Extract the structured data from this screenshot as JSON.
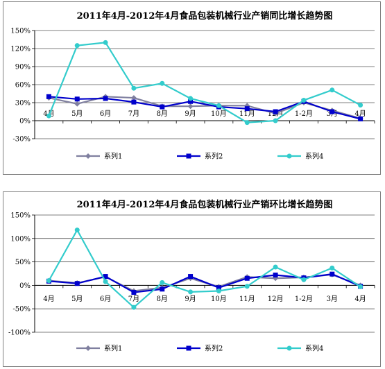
{
  "chart_data": [
    {
      "type": "line",
      "title": "2011年4月-2012年4月食品包装机械行业产销同比增长趋势图",
      "categories": [
        "4月",
        "5月",
        "6月",
        "7月",
        "8月",
        "9月",
        "10月",
        "11月",
        "12月",
        "1-2月",
        "3月",
        "4月"
      ],
      "yticks": [
        "150%",
        "120%",
        "90%",
        "60%",
        "30%",
        "0%",
        "-30%"
      ],
      "ylim": [
        -30,
        150
      ],
      "grid": true,
      "legend_position": "bottom",
      "series": [
        {
          "name": "系列1",
          "color": "#7f7f9f",
          "marker": "diamond",
          "values": [
            38,
            28,
            40,
            38,
            24,
            24,
            25,
            25,
            12,
            30,
            17,
            4
          ]
        },
        {
          "name": "系列2",
          "color": "#0000cc",
          "marker": "square",
          "values": [
            40,
            36,
            37,
            31,
            23,
            32,
            23,
            20,
            15,
            32,
            15,
            3
          ]
        },
        {
          "name": "系列4",
          "color": "#33cccc",
          "marker": "circle",
          "values": [
            8,
            125,
            130,
            54,
            62,
            37,
            25,
            -3,
            0,
            34,
            51,
            26
          ]
        }
      ]
    },
    {
      "type": "line",
      "title": "2011年4月-2012年4月食品包装机械行业产销环比增长趋势图",
      "categories": [
        "4月",
        "5月",
        "6月",
        "7月",
        "8月",
        "9月",
        "10月",
        "11月",
        "12月",
        "1-2月",
        "3月",
        "4月"
      ],
      "yticks": [
        "150%",
        "100%",
        "50%",
        "0%",
        "-50%",
        "-100%"
      ],
      "ylim": [
        -100,
        150
      ],
      "grid": true,
      "legend_position": "bottom",
      "series": [
        {
          "name": "系列1",
          "color": "#7f7f9f",
          "marker": "diamond",
          "values": [
            10,
            5,
            18,
            -12,
            -5,
            15,
            -3,
            18,
            15,
            17,
            23,
            0
          ]
        },
        {
          "name": "系列2",
          "color": "#0000cc",
          "marker": "square",
          "values": [
            9,
            4,
            19,
            -15,
            -8,
            19,
            -5,
            15,
            22,
            16,
            24,
            -2
          ]
        },
        {
          "name": "系列4",
          "color": "#33cccc",
          "marker": "circle",
          "values": [
            10,
            118,
            8,
            -47,
            6,
            -14,
            -12,
            -2,
            39,
            12,
            37,
            -3
          ]
        }
      ]
    }
  ]
}
